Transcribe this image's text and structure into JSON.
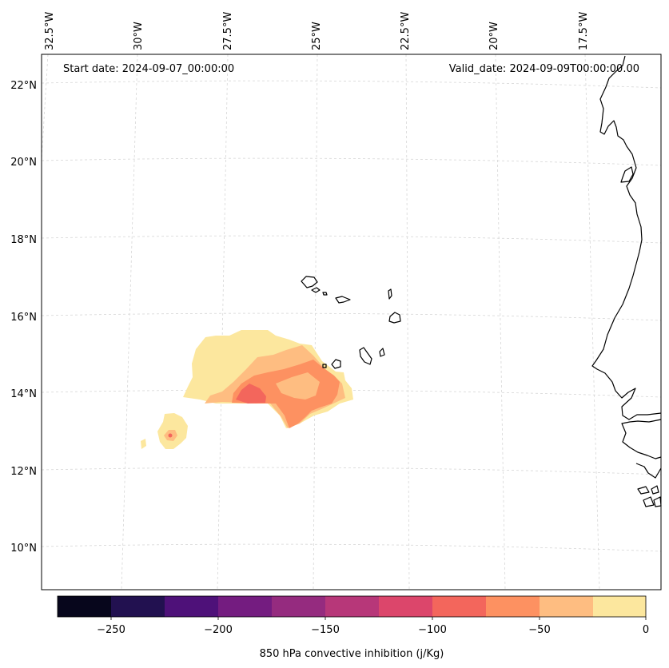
{
  "header": {
    "start_date": "Start date: 2024-09-07_00:00:00",
    "valid_date": "Valid_date: 2024-09-09T00:00:00.00"
  },
  "longitude_labels": [
    "32.5°W",
    "30°W",
    "27.5°W",
    "25°W",
    "22.5°W",
    "20°W",
    "17.5°W"
  ],
  "latitude_labels": [
    "22°N",
    "20°N",
    "18°N",
    "16°N",
    "14°N",
    "12°N",
    "10°N"
  ],
  "colorbar": {
    "label": "850 hPa convective inhibition (j/Kg)",
    "tick_labels": [
      "−250",
      "−200",
      "−150",
      "−100",
      "−50",
      "0"
    ],
    "levels": [
      -275,
      -250,
      -225,
      -200,
      -175,
      -150,
      -125,
      -100,
      -75,
      -50,
      -25,
      0
    ],
    "colors": [
      "#07061c",
      "#221150",
      "#4e1179",
      "#741c80",
      "#952b7f",
      "#b73779",
      "#dc466b",
      "#f3665c",
      "#fd9161",
      "#febd81",
      "#fce79e"
    ]
  },
  "fields": {
    "cin_range_0_to_-25": "#fce79e",
    "cin_range_-25_to_-50": "#febd81",
    "cin_range_-50_to_-75": "#fd9161",
    "cin_range_-75_to_-100": "#f3665c",
    "coastline": "#000000",
    "gridline": "#d0d0d0"
  }
}
